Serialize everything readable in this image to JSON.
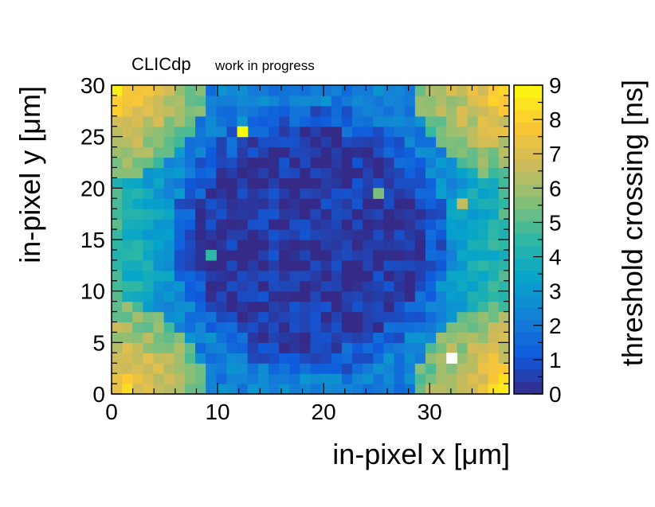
{
  "chart_data": {
    "type": "heatmap",
    "title": "CLICdp",
    "subtitle": "work in progress",
    "xlabel": "in-pixel x [μm]",
    "ylabel": "in-pixel y [μm]",
    "zlabel": "threshold crossing [ns]",
    "xlim": [
      0,
      37.5
    ],
    "ylim": [
      0,
      30
    ],
    "zlim": [
      0,
      9
    ],
    "nx": 38,
    "ny": 30,
    "xticks": [
      "0",
      "10",
      "20",
      "30"
    ],
    "yticks": [
      "0",
      "5",
      "10",
      "15",
      "20",
      "25",
      "30"
    ],
    "zticks": [
      "0",
      "1",
      "2",
      "3",
      "4",
      "5",
      "6",
      "7",
      "8",
      "9"
    ],
    "xtick_values": [
      0,
      10,
      20,
      30
    ],
    "ytick_values": [
      0,
      5,
      10,
      15,
      20,
      25,
      30
    ],
    "model": {
      "center_x": 18.75,
      "center_y": 15,
      "inner_radius_um": 11,
      "inner_value_ns": 0.3,
      "corner_value_ns": 8.3,
      "ring_value_ns": 1.2
    },
    "hotspots": [
      {
        "x": 12,
        "y": 25,
        "value": 9
      },
      {
        "x": 32,
        "y": 3,
        "value": 9.5
      },
      {
        "x": 25,
        "y": 19,
        "value": 5.5
      },
      {
        "x": 9,
        "y": 13,
        "value": 4.5
      },
      {
        "x": 33,
        "y": 18,
        "value": 6.5
      }
    ],
    "palette": [
      "#352a87",
      "#0f5cdd",
      "#1481d6",
      "#06a4ca",
      "#2eb7a4",
      "#87bf77",
      "#d1bb59",
      "#fec832",
      "#f9fb0e"
    ]
  }
}
